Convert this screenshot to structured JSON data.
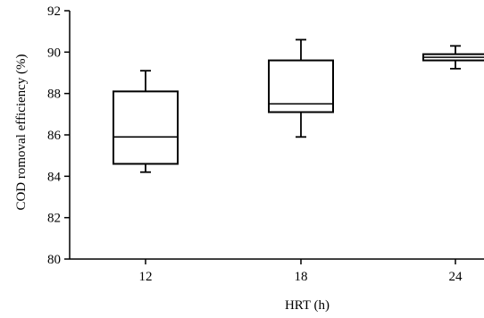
{
  "chart_data": {
    "type": "box",
    "title": "",
    "xlabel": "HRT (h)",
    "ylabel": "COD romoval efficiency (%)",
    "ylim": [
      80,
      92
    ],
    "yticks": [
      80,
      82,
      84,
      86,
      88,
      90,
      92
    ],
    "categories": [
      "12",
      "18",
      "24"
    ],
    "boxes": [
      {
        "category": "12",
        "min": 84.2,
        "q1": 84.6,
        "median": 85.9,
        "q3": 88.1,
        "max": 89.1
      },
      {
        "category": "18",
        "min": 85.9,
        "q1": 87.1,
        "median": 87.5,
        "q3": 89.6,
        "max": 90.6
      },
      {
        "category": "24",
        "min": 89.2,
        "q1": 89.6,
        "median": 89.75,
        "q3": 89.9,
        "max": 90.3
      }
    ],
    "grid": false,
    "legend": "none"
  }
}
